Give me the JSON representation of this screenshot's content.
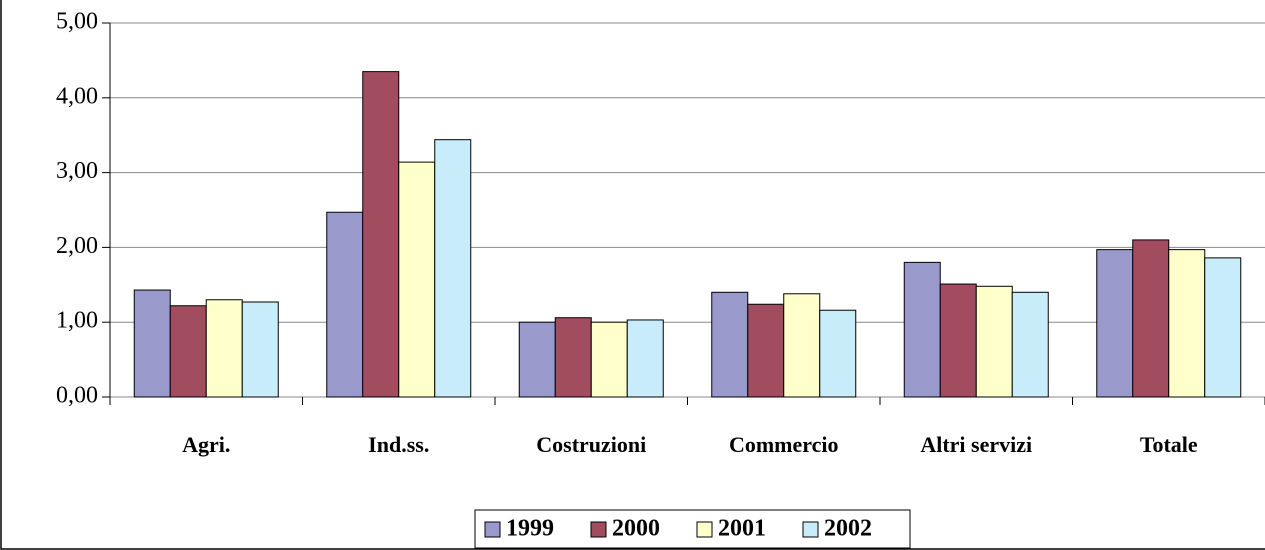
{
  "chart_data": {
    "type": "bar",
    "categories": [
      "Agri.",
      "Ind.ss.",
      "Costruzioni",
      "Commercio",
      "Altri servizi",
      "Totale"
    ],
    "series": [
      {
        "name": "1999",
        "color": "#9999cc",
        "values": [
          1.43,
          2.47,
          1.0,
          1.4,
          1.8,
          1.97
        ]
      },
      {
        "name": "2000",
        "color": "#a24d5f",
        "values": [
          1.22,
          4.35,
          1.06,
          1.24,
          1.51,
          2.1
        ]
      },
      {
        "name": "2001",
        "color": "#ffffcc",
        "values": [
          1.3,
          3.14,
          1.0,
          1.38,
          1.48,
          1.97
        ]
      },
      {
        "name": "2002",
        "color": "#c8ecf9",
        "values": [
          1.27,
          3.44,
          1.03,
          1.16,
          1.4,
          1.86
        ]
      }
    ],
    "ylim": [
      0,
      5
    ],
    "yticks": [
      {
        "value": 0,
        "label": "0,00"
      },
      {
        "value": 1,
        "label": "1,00"
      },
      {
        "value": 2,
        "label": "2,00"
      },
      {
        "value": 3,
        "label": "3,00"
      },
      {
        "value": 4,
        "label": "4,00"
      },
      {
        "value": 5,
        "label": "5,00"
      }
    ],
    "grid": true,
    "legend": "bottom"
  }
}
